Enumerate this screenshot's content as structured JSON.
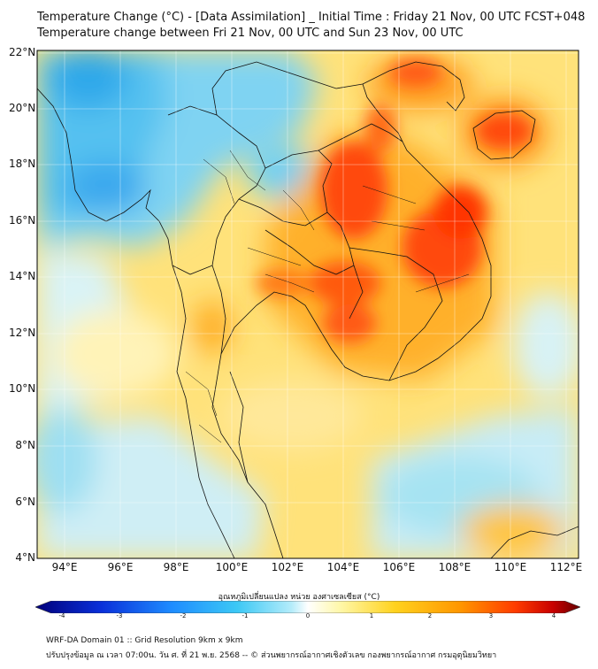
{
  "header": {
    "title_line1": "Temperature Change (°C) - [Data Assimilation] _ Initial Time : Friday 21 Nov, 00 UTC FCST+048",
    "title_line2": "Temperature change between Fri 21 Nov, 00 UTC and Sun 23 Nov, 00 UTC"
  },
  "axes": {
    "lat_labels": [
      "22°N",
      "20°N",
      "18°N",
      "16°N",
      "14°N",
      "12°N",
      "10°N",
      "8°N",
      "6°N",
      "4°N"
    ],
    "lon_labels": [
      "94°E",
      "96°E",
      "98°E",
      "100°E",
      "102°E",
      "104°E",
      "106°E",
      "108°E",
      "110°E",
      "112°E"
    ]
  },
  "colorbar": {
    "title": "อุณหภูมิเปลี่ยนแปลง หน่วย องศาเซลเซียส (°C)",
    "ticks": [
      "-4",
      "-3",
      "-2",
      "-1",
      "0",
      "1",
      "2",
      "3",
      "4"
    ],
    "colors": [
      "#00007a",
      "#0a2fd9",
      "#1e8cff",
      "#3cc8f5",
      "#b4ecfa",
      "#ffffff",
      "#fff7a8",
      "#ffd21e",
      "#ff9600",
      "#ff3c00",
      "#c80000",
      "#640000"
    ]
  },
  "footer": {
    "line1": "WRF-DA Domain 01 :: Grid Resolution 9km x 9km",
    "line2": "ปรับปรุงข้อมูล ณ เวลา 07:00น. วัน ศ. ที่ 21 พ.ย. 2568 -- © ส่วนพยากรณ์อากาศเชิงตัวเลข กองพยากรณ์อากาศ กรมอุตุนิยมวิทยา"
  }
}
